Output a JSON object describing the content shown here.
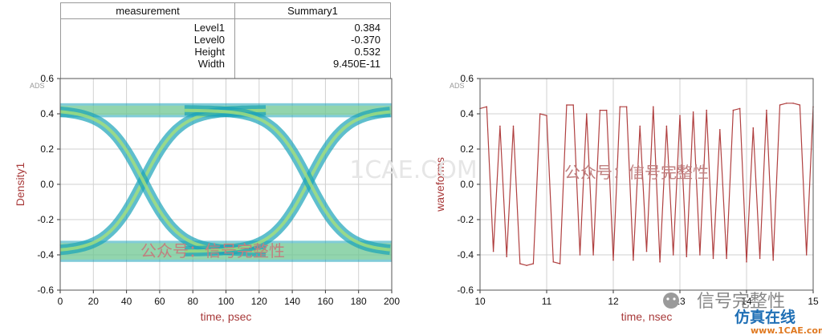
{
  "summary_table": {
    "header_left": "measurement",
    "header_right": "Summary1",
    "rows": [
      {
        "label": "Level1",
        "value": "0.384"
      },
      {
        "label": "Level0",
        "value": "-0.370"
      },
      {
        "label": "Height",
        "value": "0.532"
      },
      {
        "label": "Width",
        "value": "9.450E-11"
      }
    ]
  },
  "watermarks": {
    "cn1": "公众号：信号完整性",
    "cn2": "公众号：信号完整性",
    "wechat": "信号完整性",
    "site": "仿真在线",
    "site_url": "www.1CAE.com",
    "mid": "1CAE.COM"
  },
  "colors": {
    "eye_outer": "#1aa3b8",
    "eye_inner": "#a6e07a",
    "wave": "#b04040",
    "grid": "#d0d0d0",
    "axis_label": "#a83a3a"
  },
  "chart_data": [
    {
      "type": "eye_density",
      "corner_label": "ADS",
      "xlabel": "time, psec",
      "ylabel": "Density1",
      "xlim": [
        0,
        200
      ],
      "ylim": [
        -0.6,
        0.6
      ],
      "x_ticks": [
        0,
        20,
        40,
        60,
        80,
        100,
        120,
        140,
        160,
        180,
        200
      ],
      "y_ticks": [
        -0.6,
        -0.4,
        -0.2,
        0.0,
        0.2,
        0.4,
        0.6
      ],
      "y_tick_labels": [
        "-0.6",
        "-0.4",
        "-0.2",
        "0.0",
        "0.2",
        "0.4",
        "0.6"
      ],
      "levels": {
        "high_band": [
          0.38,
          0.46
        ],
        "low_band": [
          -0.44,
          -0.32
        ]
      },
      "crossings_x": [
        50,
        150
      ],
      "crossing_y": 0.0,
      "grid": true
    },
    {
      "type": "line",
      "corner_label": "ADS",
      "xlabel": "time, nsec",
      "ylabel": "waveforms",
      "xlim": [
        10,
        15
      ],
      "ylim": [
        -0.6,
        0.6
      ],
      "x_ticks": [
        10,
        11,
        12,
        13,
        14,
        15
      ],
      "y_ticks": [
        -0.6,
        -0.4,
        -0.2,
        0.0,
        0.2,
        0.4,
        0.6
      ],
      "y_tick_labels": [
        "-0.6",
        "-0.4",
        "-0.2",
        "0.0",
        "0.2",
        "0.4",
        "0.6"
      ],
      "grid": true,
      "series": [
        {
          "x": [
            10.0,
            10.1,
            10.2,
            10.3,
            10.4,
            10.5,
            10.6,
            10.7,
            10.8,
            10.9,
            11.0,
            11.1,
            11.2,
            11.3,
            11.4,
            11.5,
            11.6,
            11.7,
            11.8,
            11.9,
            12.0,
            12.1,
            12.2,
            12.3,
            12.4,
            12.5,
            12.6,
            12.7,
            12.8,
            12.9,
            13.0,
            13.1,
            13.2,
            13.3,
            13.4,
            13.5,
            13.6,
            13.7,
            13.8,
            13.9,
            14.0,
            14.1,
            14.2,
            14.3,
            14.4,
            14.5,
            14.6,
            14.7,
            14.8,
            14.9,
            15.0
          ],
          "y": [
            0.43,
            0.44,
            -0.38,
            0.33,
            -0.41,
            0.33,
            -0.45,
            -0.46,
            -0.45,
            0.4,
            0.39,
            -0.44,
            -0.45,
            0.45,
            0.45,
            -0.4,
            0.4,
            -0.4,
            0.42,
            0.42,
            -0.43,
            0.44,
            0.44,
            -0.43,
            0.33,
            -0.38,
            0.44,
            -0.44,
            0.33,
            -0.4,
            0.39,
            -0.41,
            0.41,
            -0.4,
            0.42,
            -0.42,
            0.31,
            -0.42,
            0.42,
            0.43,
            -0.44,
            0.32,
            -0.42,
            0.42,
            -0.43,
            0.45,
            0.46,
            0.46,
            0.45,
            -0.4,
            0.44
          ]
        }
      ]
    }
  ]
}
